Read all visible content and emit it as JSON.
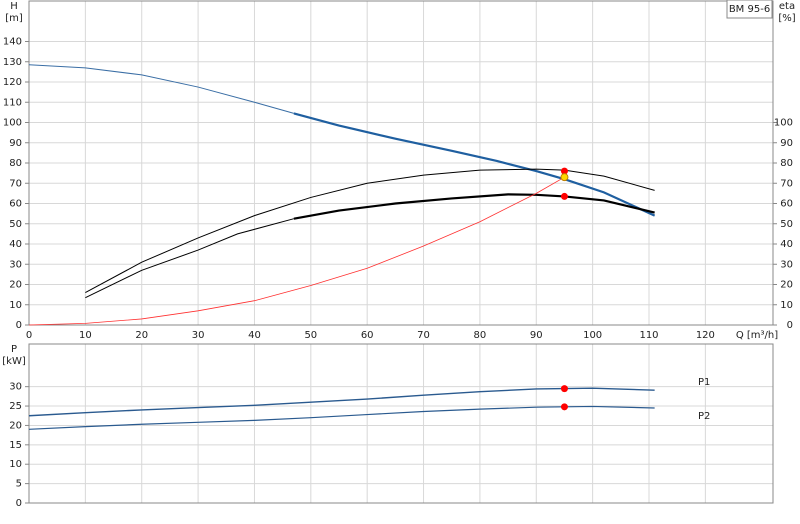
{
  "chart_data": [
    {
      "type": "line",
      "label_box": "BM 95-6",
      "ylabel": [
        "H",
        "[m]"
      ],
      "y2label": [
        "eta",
        "[%]"
      ],
      "xlabel": "Q [m³/h]",
      "xlim": [
        0,
        132
      ],
      "xticks": [
        0,
        10,
        20,
        30,
        40,
        50,
        60,
        70,
        80,
        90,
        100,
        110,
        120
      ],
      "ylim": [
        0,
        160
      ],
      "yticks": [
        0,
        10,
        20,
        30,
        40,
        50,
        60,
        70,
        80,
        90,
        100,
        110,
        120,
        130,
        140
      ],
      "y2lim": [
        0,
        160
      ],
      "y2ticks": [
        0,
        10,
        20,
        30,
        40,
        50,
        60,
        70,
        80,
        90,
        100
      ],
      "grid": true,
      "series": [
        {
          "color": "#3a6ea5",
          "linewidth": 1,
          "x": [
            0,
            10,
            20,
            30,
            40,
            47
          ],
          "values": [
            128.5,
            127,
            123.5,
            117.5,
            110,
            104.5
          ]
        },
        {
          "color": "#1f5fa0",
          "linewidth": 2.2,
          "x": [
            47,
            55,
            65,
            75,
            83,
            90,
            95,
            102,
            111
          ],
          "values": [
            104.5,
            98.5,
            92,
            86,
            81,
            76,
            72,
            65.5,
            54
          ]
        },
        {
          "color": "#000000",
          "linewidth": 1,
          "axis": "y2",
          "x": [
            10,
            20,
            30,
            40,
            50,
            60,
            70,
            80,
            90,
            95,
            102,
            111
          ],
          "values": [
            16,
            31,
            43,
            54,
            63,
            70,
            74,
            76.5,
            77,
            76.5,
            73.5,
            66.5
          ]
        },
        {
          "color": "#000000",
          "linewidth": 1,
          "axis": "y2",
          "x": [
            10,
            20,
            30,
            37,
            47
          ],
          "values": [
            13.5,
            27,
            37,
            45,
            52.5
          ]
        },
        {
          "color": "#000000",
          "linewidth": 2.2,
          "axis": "y2",
          "x": [
            47,
            55,
            65,
            75,
            85,
            90,
            95,
            102,
            111
          ],
          "values": [
            52.5,
            56.5,
            60,
            62.5,
            64.5,
            64.3,
            63.5,
            61.5,
            55.5
          ]
        },
        {
          "color": "#ff3030",
          "linewidth": 0.8,
          "x": [
            0,
            10,
            20,
            30,
            40,
            50,
            60,
            70,
            80,
            90,
            95
          ],
          "values": [
            0,
            0.8,
            3,
            7,
            12,
            19.5,
            28,
            39,
            51,
            65,
            73
          ]
        }
      ],
      "points": [
        {
          "color": "#ff0000",
          "x": 95,
          "value": 76
        },
        {
          "color": "#ff0000",
          "x": 95,
          "value": 63.5
        },
        {
          "color": "#ffd700",
          "x": 95,
          "value": 73
        }
      ]
    },
    {
      "type": "line",
      "ylabel": [
        "P",
        "[kW]"
      ],
      "xlim": [
        0,
        132
      ],
      "ylim": [
        0,
        41
      ],
      "yticks": [
        0,
        5,
        10,
        15,
        20,
        25,
        30
      ],
      "grid": true,
      "series": [
        {
          "name": "P1",
          "color": "#2a5a8f",
          "linewidth": 1.4,
          "x": [
            0,
            10,
            20,
            30,
            40,
            50,
            60,
            70,
            80,
            90,
            95,
            100,
            111
          ],
          "values": [
            22.5,
            23.3,
            24,
            24.6,
            25.2,
            26,
            26.8,
            27.8,
            28.7,
            29.4,
            29.5,
            29.6,
            29.1
          ]
        },
        {
          "name": "P2",
          "color": "#2a5a8f",
          "linewidth": 1.2,
          "x": [
            0,
            10,
            20,
            30,
            40,
            50,
            60,
            70,
            80,
            90,
            95,
            100,
            111
          ],
          "values": [
            19,
            19.7,
            20.3,
            20.8,
            21.3,
            22,
            22.8,
            23.6,
            24.2,
            24.7,
            24.8,
            24.9,
            24.5
          ]
        }
      ],
      "points": [
        {
          "color": "#ff0000",
          "x": 95,
          "value": 29.5
        },
        {
          "color": "#ff0000",
          "x": 95,
          "value": 24.8
        }
      ]
    }
  ]
}
